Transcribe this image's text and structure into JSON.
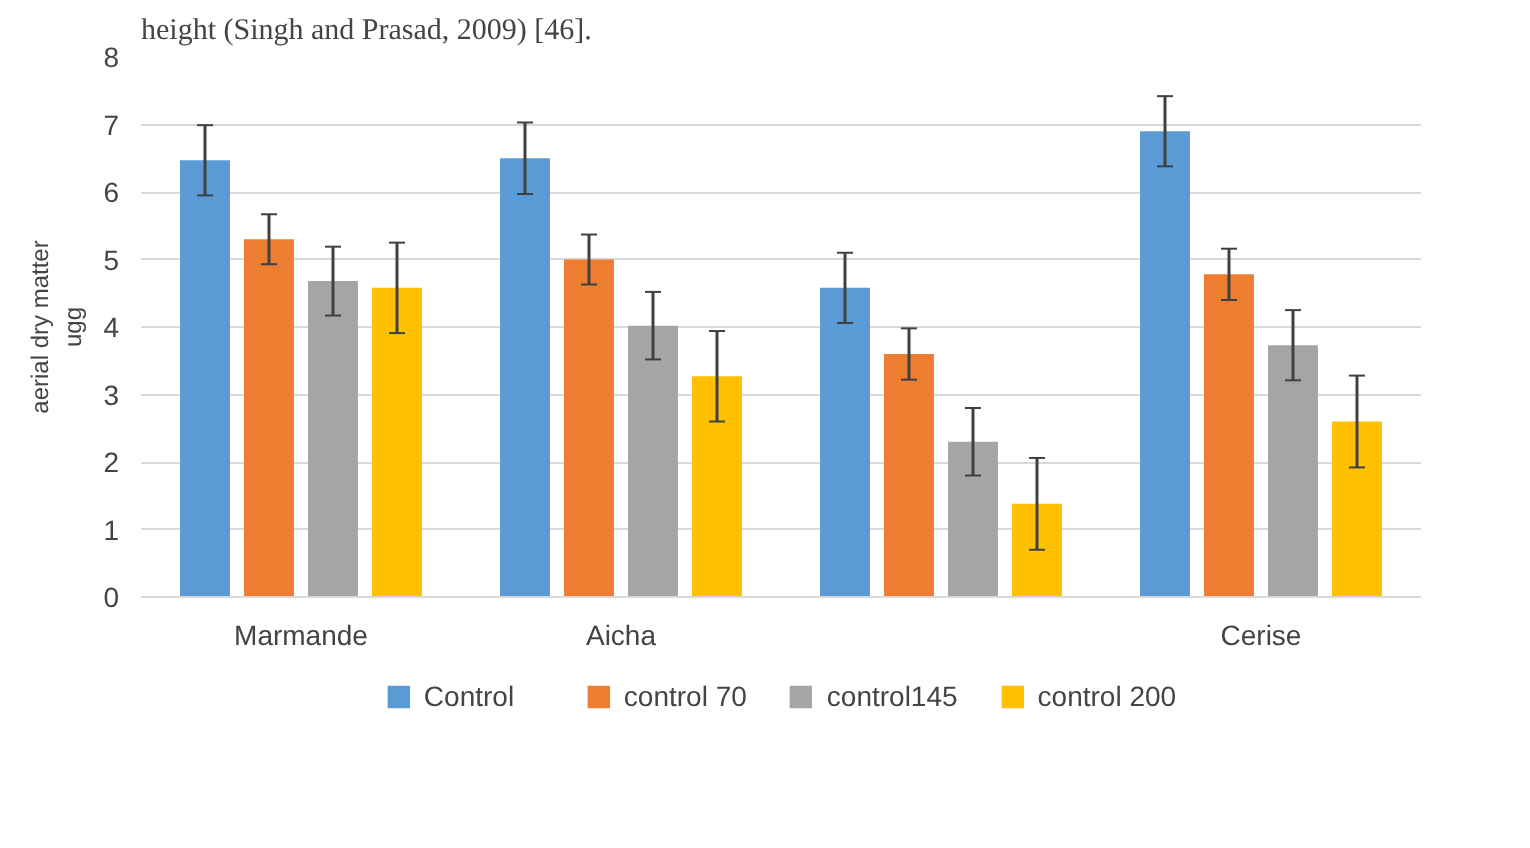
{
  "chart_data": {
    "type": "bar",
    "ylabel": "aerial dry matter\nugg",
    "annotations": [
      "height (Singh and Prasad, 2009) [46]."
    ],
    "categories": [
      "Marmande",
      "Aicha",
      null,
      "Cerise"
    ],
    "series": [
      {
        "name": "Control",
        "color": "#5b9bd5",
        "values": [
          6.47,
          6.5,
          4.58,
          6.9
        ],
        "errors": [
          0.52,
          0.53,
          0.52,
          0.52
        ]
      },
      {
        "name": "control 70",
        "color": "#ed7d31",
        "values": [
          5.3,
          5.0,
          3.6,
          4.78
        ],
        "errors": [
          0.37,
          0.37,
          0.38,
          0.38
        ]
      },
      {
        "name": "control145",
        "color": "#a5a5a5",
        "values": [
          4.68,
          4.02,
          2.3,
          3.73
        ],
        "errors": [
          0.51,
          0.5,
          0.5,
          0.52
        ]
      },
      {
        "name": "control 200",
        "color": "#ffc000",
        "values": [
          4.58,
          3.27,
          1.38,
          2.6
        ],
        "errors": [
          0.67,
          0.67,
          0.68,
          0.68
        ]
      }
    ],
    "ylim": [
      0,
      8
    ],
    "yticks": [
      0,
      1,
      2,
      3,
      4,
      5,
      6,
      7,
      8
    ],
    "grid": "y",
    "legend": "bottom"
  }
}
